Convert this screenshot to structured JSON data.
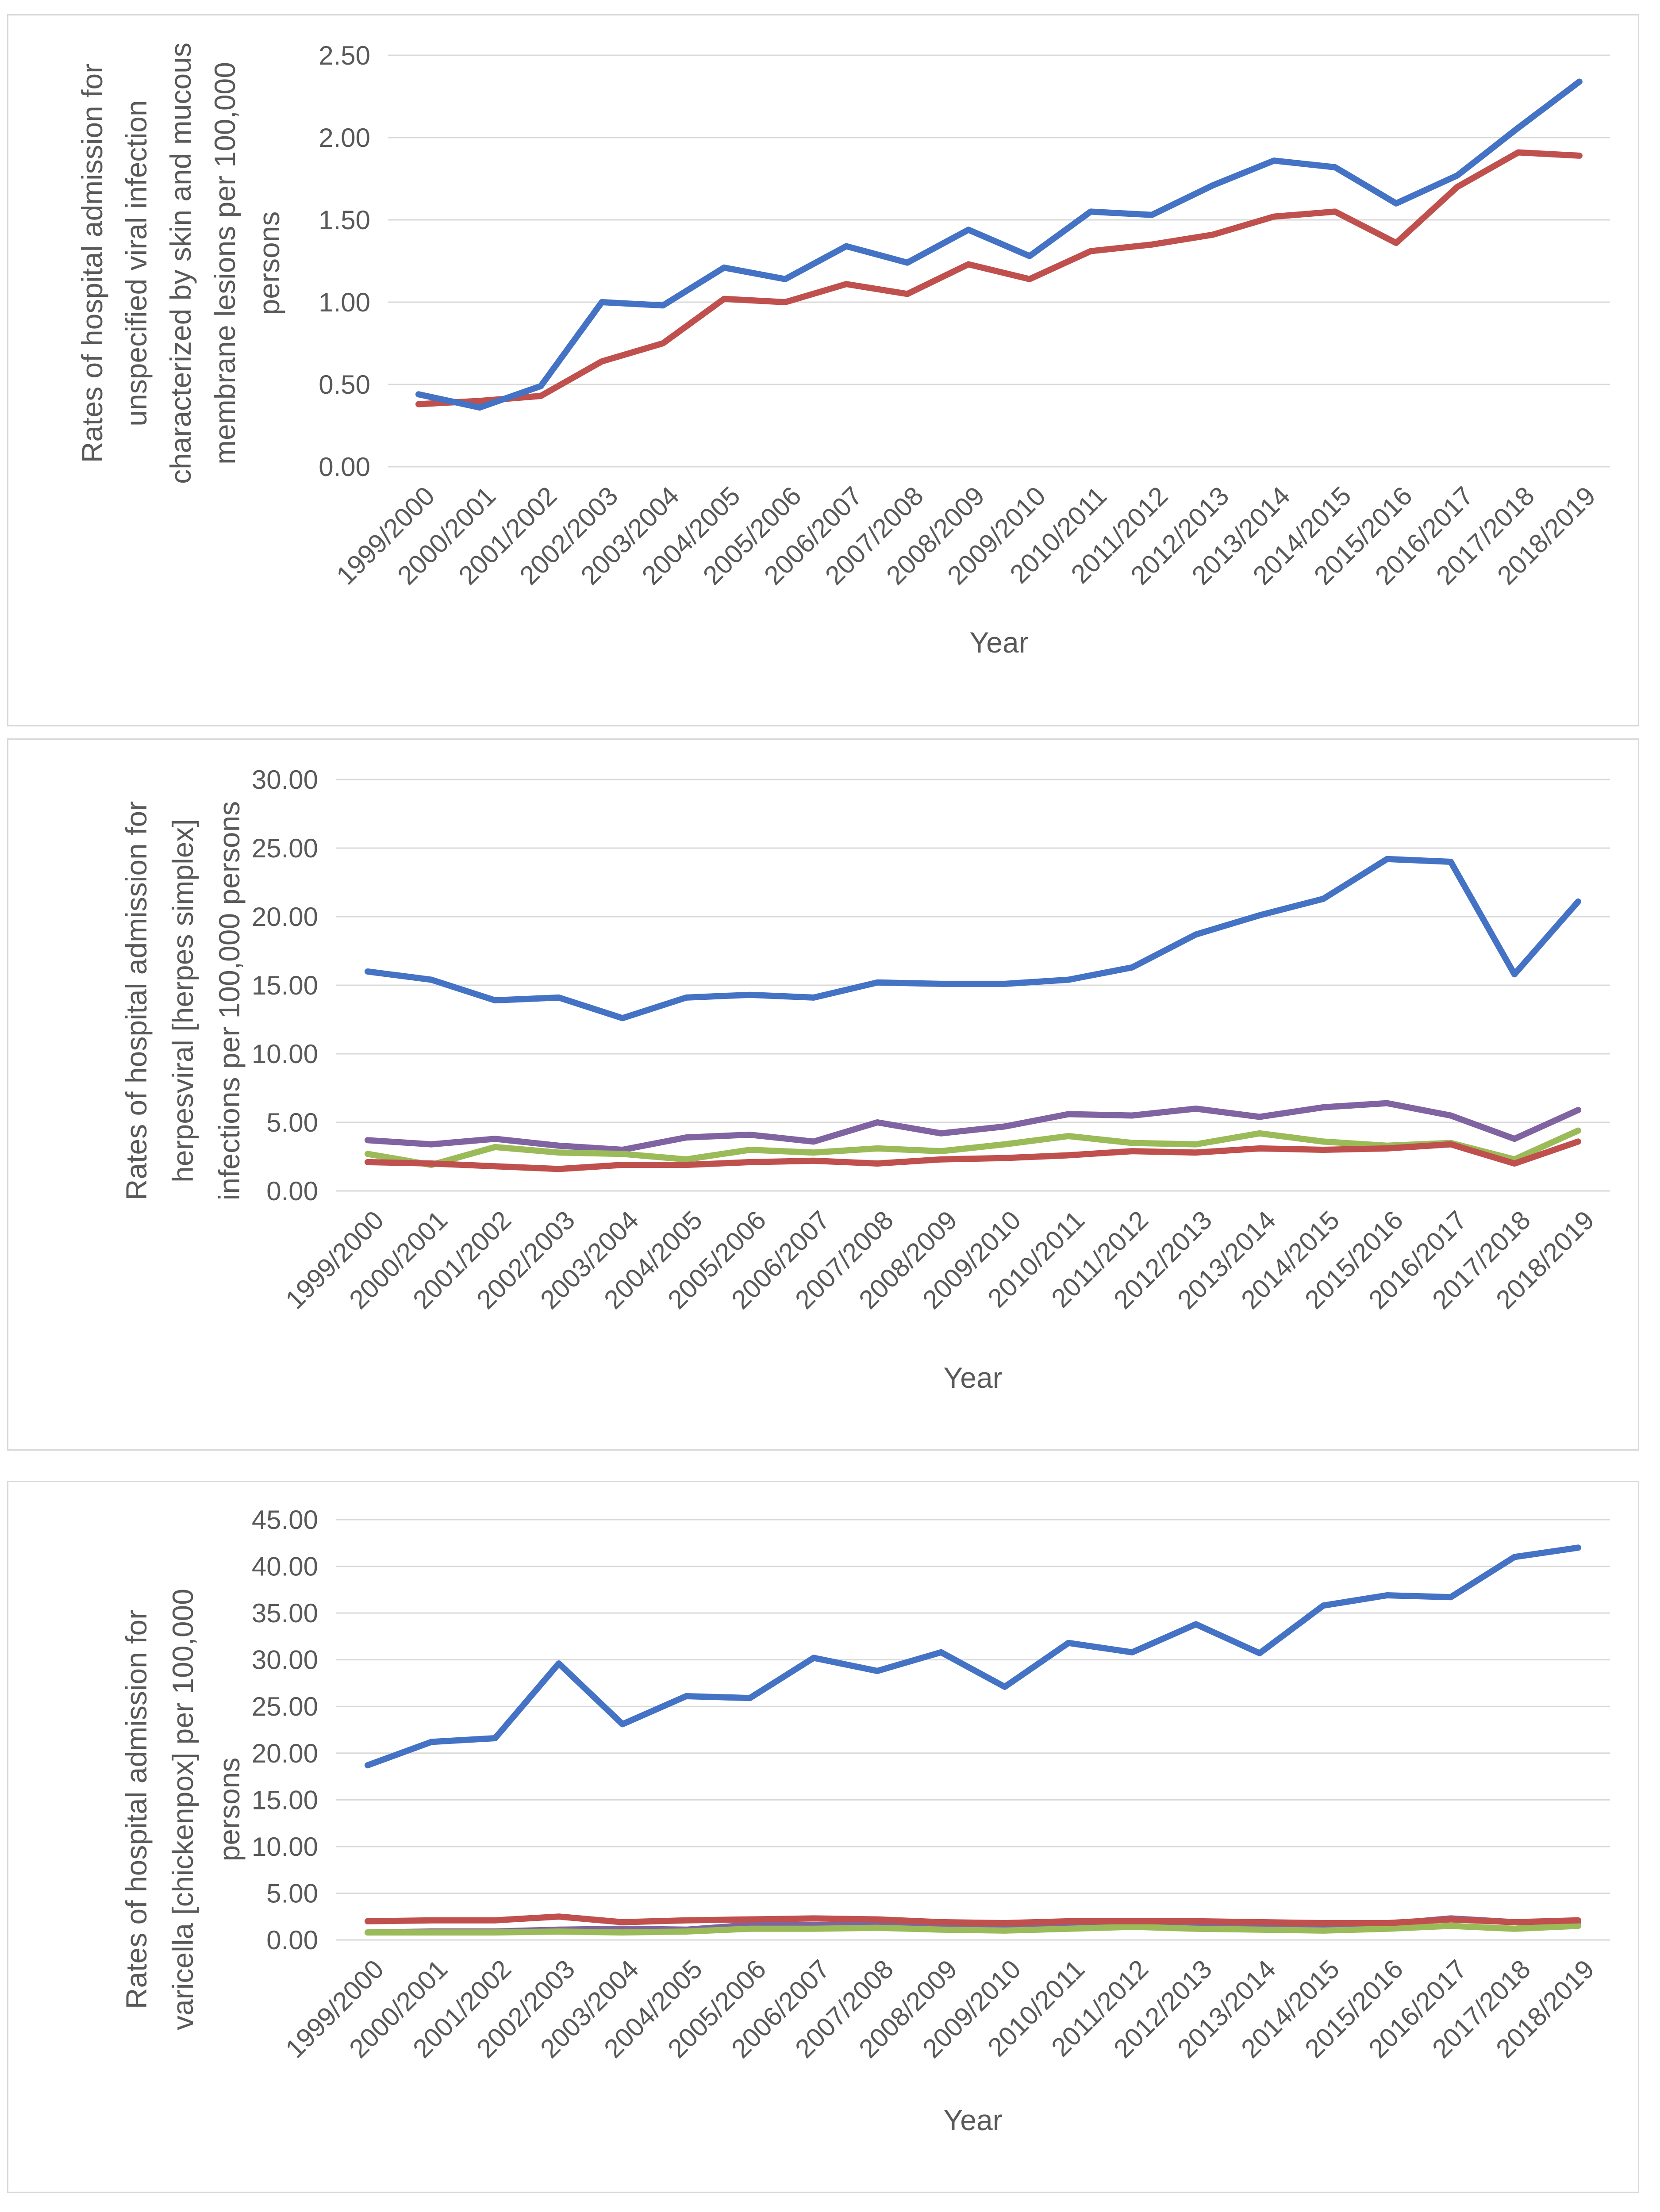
{
  "chart_data": [
    {
      "type": "line",
      "title": "",
      "xlabel": "Year",
      "ylabel": [
        "Rates of hospital admission for",
        "unspecified viral infection",
        "characterized by skin and mucous",
        "membrane lesions per 100,000",
        "persons"
      ],
      "categories": [
        "1999/2000",
        "2000/2001",
        "2001/2002",
        "2002/2003",
        "2003/2004",
        "2004/2005",
        "2005/2006",
        "2006/2007",
        "2007/2008",
        "2008/2009",
        "2009/2010",
        "2010/2011",
        "2011/2012",
        "2012/2013",
        "2013/2014",
        "2014/2015",
        "2015/2016",
        "2016/2017",
        "2017/2018",
        "2018/2019"
      ],
      "yticks": [
        "0.00",
        "0.50",
        "1.00",
        "1.50",
        "2.00",
        "2.50"
      ],
      "ylim": [
        0,
        2.5
      ],
      "grid": true,
      "legend": "none",
      "series": [
        {
          "name": "blue",
          "color": "#4472C4",
          "values": [
            0.44,
            0.36,
            0.49,
            1.0,
            0.98,
            1.21,
            1.14,
            1.34,
            1.24,
            1.44,
            1.28,
            1.55,
            1.53,
            1.71,
            1.86,
            1.82,
            1.6,
            1.77,
            2.06,
            2.34
          ]
        },
        {
          "name": "red",
          "color": "#C0504D",
          "values": [
            0.38,
            0.4,
            0.43,
            0.64,
            0.75,
            1.02,
            1.0,
            1.11,
            1.05,
            1.23,
            1.14,
            1.31,
            1.35,
            1.41,
            1.52,
            1.55,
            1.36,
            1.7,
            1.91,
            1.89
          ]
        }
      ]
    },
    {
      "type": "line",
      "title": "",
      "xlabel": "Year",
      "ylabel": [
        "Rates of hospital admission for",
        "herpesviral [herpes simplex]",
        "infections per 100,000 persons"
      ],
      "categories": [
        "1999/2000",
        "2000/2001",
        "2001/2002",
        "2002/2003",
        "2003/2004",
        "2004/2005",
        "2005/2006",
        "2006/2007",
        "2007/2008",
        "2008/2009",
        "2009/2010",
        "2010/2011",
        "2011/2012",
        "2012/2013",
        "2013/2014",
        "2014/2015",
        "2015/2016",
        "2016/2017",
        "2017/2018",
        "2018/2019"
      ],
      "yticks": [
        "0.00",
        "5.00",
        "10.00",
        "15.00",
        "20.00",
        "25.00",
        "30.00"
      ],
      "ylim": [
        0,
        30
      ],
      "grid": true,
      "legend": "none",
      "series": [
        {
          "name": "blue",
          "color": "#4472C4",
          "values": [
            16.0,
            15.4,
            13.9,
            14.1,
            12.6,
            14.1,
            14.3,
            14.1,
            15.2,
            15.1,
            15.1,
            15.4,
            16.3,
            18.7,
            20.1,
            21.3,
            24.2,
            24.0,
            15.8,
            21.1
          ]
        },
        {
          "name": "red",
          "color": "#C0504D",
          "values": [
            2.1,
            2.0,
            1.8,
            1.6,
            1.9,
            1.9,
            2.1,
            2.2,
            2.0,
            2.3,
            2.4,
            2.6,
            2.9,
            2.8,
            3.1,
            3.0,
            3.1,
            3.4,
            2.0,
            3.6
          ]
        },
        {
          "name": "green",
          "color": "#9BBB59",
          "values": [
            2.7,
            1.9,
            3.2,
            2.8,
            2.7,
            2.3,
            3.0,
            2.8,
            3.1,
            2.9,
            3.4,
            4.0,
            3.5,
            3.4,
            4.2,
            3.6,
            3.3,
            3.5,
            2.3,
            4.4
          ]
        },
        {
          "name": "purple",
          "color": "#8064A2",
          "values": [
            3.7,
            3.4,
            3.8,
            3.3,
            3.0,
            3.9,
            4.1,
            3.6,
            5.0,
            4.2,
            4.7,
            5.6,
            5.5,
            6.0,
            5.4,
            6.1,
            6.4,
            5.5,
            3.8,
            5.9
          ]
        }
      ]
    },
    {
      "type": "line",
      "title": "",
      "xlabel": "Year",
      "ylabel": [
        "Rates of hospital admission for",
        "varicella [chickenpox] per 100,000",
        "persons"
      ],
      "categories": [
        "1999/2000",
        "2000/2001",
        "2001/2002",
        "2002/2003",
        "2003/2004",
        "2004/2005",
        "2005/2006",
        "2006/2007",
        "2007/2008",
        "2008/2009",
        "2009/2010",
        "2010/2011",
        "2011/2012",
        "2012/2013",
        "2013/2014",
        "2014/2015",
        "2015/2016",
        "2016/2017",
        "2017/2018",
        "2018/2019"
      ],
      "yticks": [
        "0.00",
        "5.00",
        "10.00",
        "15.00",
        "20.00",
        "25.00",
        "30.00",
        "35.00",
        "40.00",
        "45.00"
      ],
      "ylim": [
        0,
        45
      ],
      "grid": true,
      "legend": "none",
      "series": [
        {
          "name": "blue",
          "color": "#4472C4",
          "values": [
            18.7,
            21.2,
            21.6,
            29.6,
            23.1,
            26.1,
            25.9,
            30.2,
            28.8,
            30.8,
            27.1,
            31.8,
            30.8,
            33.8,
            30.7,
            35.8,
            36.9,
            36.7,
            41.0,
            42.0
          ]
        },
        {
          "name": "red",
          "color": "#C0504D",
          "values": [
            2.0,
            2.1,
            2.1,
            2.5,
            1.9,
            2.1,
            2.2,
            2.3,
            2.2,
            1.9,
            1.8,
            2.0,
            2.0,
            2.0,
            1.9,
            1.8,
            1.8,
            2.2,
            1.9,
            2.1
          ]
        },
        {
          "name": "green",
          "color": "#9BBB59",
          "values": [
            0.8,
            0.8,
            0.8,
            0.9,
            0.8,
            0.9,
            1.2,
            1.2,
            1.3,
            1.1,
            1.0,
            1.2,
            1.4,
            1.2,
            1.1,
            1.0,
            1.2,
            1.5,
            1.2,
            1.5
          ]
        },
        {
          "name": "purple",
          "color": "#8064A2",
          "values": [
            0.8,
            0.9,
            0.9,
            1.1,
            1.2,
            1.1,
            1.6,
            1.6,
            1.6,
            1.5,
            1.5,
            1.8,
            2.0,
            1.6,
            1.4,
            1.5,
            1.7,
            2.3,
            1.9,
            1.7
          ]
        }
      ]
    }
  ]
}
